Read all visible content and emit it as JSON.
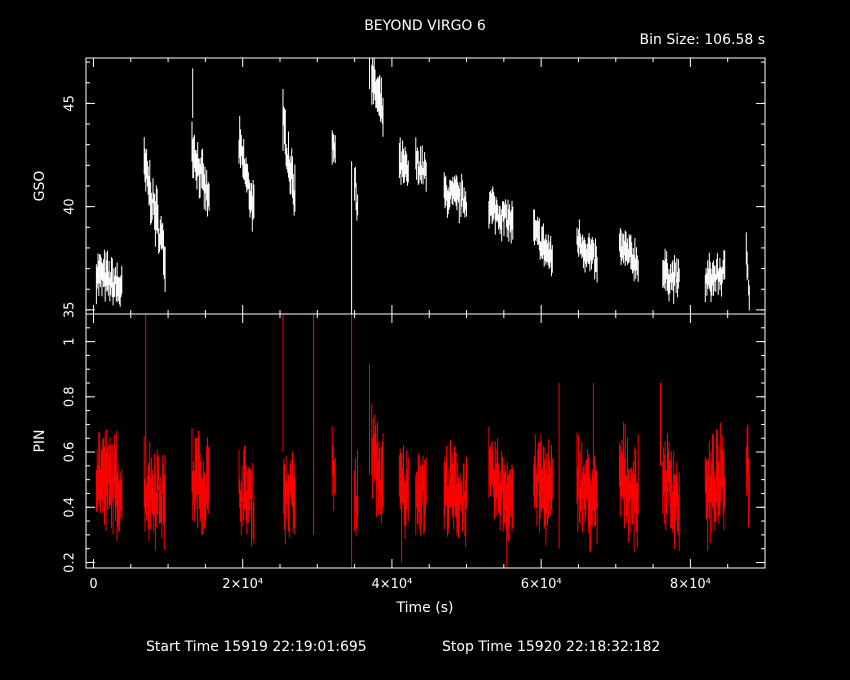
{
  "chart_data": {
    "type": "scatter",
    "title": "BEYOND VIRGO 6",
    "bin_size_label": "Bin Size:  106.58  s",
    "xlabel": "Time (s)",
    "xlim": [
      -1000,
      90000
    ],
    "x_ticks": [
      {
        "value": 0,
        "label": "0"
      },
      {
        "value": 20000,
        "label": "2×10⁴"
      },
      {
        "value": 40000,
        "label": "4×10⁴"
      },
      {
        "value": 60000,
        "label": "6×10⁴"
      },
      {
        "value": 80000,
        "label": "8×10⁴"
      }
    ],
    "start_label": "Start Time 15919  22:19:01:695",
    "stop_label": "Stop Time 15920  22:18:32:182",
    "panels": [
      {
        "id": "gso",
        "ylabel": "GSO",
        "ylim": [
          34.8,
          47.2
        ],
        "y_ticks": [
          {
            "value": 35,
            "label": "35"
          },
          {
            "value": 40,
            "label": "40"
          },
          {
            "value": 45,
            "label": "45"
          }
        ],
        "color": "#ffffff",
        "segments": [
          {
            "t0": 400,
            "t1": 3800,
            "y0": 36.8,
            "y1": 36.0,
            "err": 0.7
          },
          {
            "t0": 6800,
            "t1": 9600,
            "y0": 42.0,
            "y1": 37.6,
            "err": 0.8
          },
          {
            "t0": 13200,
            "t1": 15500,
            "y0": 43.0,
            "y1": 40.2,
            "err": 0.7
          },
          {
            "t0": 19500,
            "t1": 21500,
            "y0": 43.0,
            "y1": 39.8,
            "err": 0.7
          },
          {
            "t0": 25500,
            "t1": 27000,
            "y0": 43.8,
            "y1": 40.5,
            "err": 0.8
          },
          {
            "t0": 32000,
            "t1": 32400,
            "y0": 43.2,
            "y1": 43.0,
            "err": 0.6
          },
          {
            "t0": 35000,
            "t1": 35400,
            "y0": 41.0,
            "y1": 40.2,
            "err": 0.8
          },
          {
            "t0": 37300,
            "t1": 38800,
            "y0": 46.2,
            "y1": 44.5,
            "err": 0.7
          },
          {
            "t0": 41000,
            "t1": 42200,
            "y0": 42.0,
            "y1": 41.6,
            "err": 0.7
          },
          {
            "t0": 43200,
            "t1": 44600,
            "y0": 42.2,
            "y1": 41.6,
            "err": 0.6
          },
          {
            "t0": 47000,
            "t1": 50000,
            "y0": 40.6,
            "y1": 40.3,
            "err": 0.6
          },
          {
            "t0": 53000,
            "t1": 56200,
            "y0": 40.0,
            "y1": 39.2,
            "err": 0.6
          },
          {
            "t0": 59000,
            "t1": 61500,
            "y0": 38.8,
            "y1": 37.4,
            "err": 0.6
          },
          {
            "t0": 64800,
            "t1": 67500,
            "y0": 38.5,
            "y1": 37.2,
            "err": 0.6
          },
          {
            "t0": 70500,
            "t1": 73000,
            "y0": 38.0,
            "y1": 37.3,
            "err": 0.6
          },
          {
            "t0": 76300,
            "t1": 78500,
            "y0": 36.8,
            "y1": 36.4,
            "err": 0.6
          },
          {
            "t0": 82000,
            "t1": 84600,
            "y0": 36.4,
            "y1": 36.8,
            "err": 0.6
          },
          {
            "t0": 87500,
            "t1": 87900,
            "y0": 37.8,
            "y1": 36.0,
            "err": 0.6
          }
        ],
        "spikes": [
          {
            "t": 13300,
            "y": 45.5,
            "err": 1.2
          },
          {
            "t": 25400,
            "y": 44.2,
            "err": 1.5
          },
          {
            "t": 34600,
            "y": 38.5,
            "err": 3.7
          },
          {
            "t": 37000,
            "y": 46.5,
            "err": 0.8
          }
        ]
      },
      {
        "id": "pin",
        "ylabel": "PIN",
        "ylim": [
          0.18,
          1.1
        ],
        "y_ticks": [
          {
            "value": 0.2,
            "label": "0.2"
          },
          {
            "value": 0.4,
            "label": "0.4"
          },
          {
            "value": 0.6,
            "label": "0.6"
          },
          {
            "value": 0.8,
            "label": "0.8"
          },
          {
            "value": 1,
            "label": "1"
          }
        ],
        "color": "#ff0000",
        "segments": [
          {
            "t0": 400,
            "t1": 3800,
            "y0": 0.52,
            "y1": 0.46,
            "err": 0.1
          },
          {
            "t0": 6800,
            "t1": 9600,
            "y0": 0.48,
            "y1": 0.44,
            "err": 0.1
          },
          {
            "t0": 13200,
            "t1": 15500,
            "y0": 0.5,
            "y1": 0.47,
            "err": 0.1
          },
          {
            "t0": 19500,
            "t1": 21500,
            "y0": 0.47,
            "y1": 0.42,
            "err": 0.09
          },
          {
            "t0": 25500,
            "t1": 27000,
            "y0": 0.45,
            "y1": 0.44,
            "err": 0.09
          },
          {
            "t0": 32000,
            "t1": 32400,
            "y0": 0.52,
            "y1": 0.5,
            "err": 0.09
          },
          {
            "t0": 35000,
            "t1": 35400,
            "y0": 0.44,
            "y1": 0.42,
            "err": 0.1
          },
          {
            "t0": 37300,
            "t1": 38800,
            "y0": 0.62,
            "y1": 0.47,
            "err": 0.1
          },
          {
            "t0": 41000,
            "t1": 42200,
            "y0": 0.48,
            "y1": 0.44,
            "err": 0.09
          },
          {
            "t0": 43200,
            "t1": 44600,
            "y0": 0.48,
            "y1": 0.45,
            "err": 0.09
          },
          {
            "t0": 47000,
            "t1": 50000,
            "y0": 0.46,
            "y1": 0.44,
            "err": 0.09
          },
          {
            "t0": 53000,
            "t1": 56200,
            "y0": 0.5,
            "y1": 0.44,
            "err": 0.09
          },
          {
            "t0": 59000,
            "t1": 61500,
            "y0": 0.5,
            "y1": 0.44,
            "err": 0.1
          },
          {
            "t0": 64800,
            "t1": 67500,
            "y0": 0.5,
            "y1": 0.4,
            "err": 0.1
          },
          {
            "t0": 70500,
            "t1": 73000,
            "y0": 0.52,
            "y1": 0.44,
            "err": 0.1
          },
          {
            "t0": 76300,
            "t1": 78500,
            "y0": 0.52,
            "y1": 0.42,
            "err": 0.1
          },
          {
            "t0": 82000,
            "t1": 84600,
            "y0": 0.44,
            "y1": 0.5,
            "err": 0.1
          },
          {
            "t0": 87500,
            "t1": 87900,
            "y0": 0.6,
            "y1": 0.5,
            "err": 0.1
          }
        ],
        "spikes": [
          {
            "t": 7000,
            "y": 0.85,
            "err": 0.25
          },
          {
            "t": 25400,
            "y": 0.85,
            "err": 0.25
          },
          {
            "t": 29500,
            "y": 0.7,
            "err": 0.4
          },
          {
            "t": 34600,
            "y": 0.65,
            "err": 0.48
          },
          {
            "t": 37000,
            "y": 0.72,
            "err": 0.2
          },
          {
            "t": 41300,
            "y": 0.35,
            "err": 0.15
          },
          {
            "t": 55400,
            "y": 0.3,
            "err": 0.12
          },
          {
            "t": 62400,
            "y": 0.55,
            "err": 0.3
          },
          {
            "t": 67000,
            "y": 0.7,
            "err": 0.15
          },
          {
            "t": 76000,
            "y": 0.7,
            "err": 0.15
          }
        ]
      }
    ]
  }
}
